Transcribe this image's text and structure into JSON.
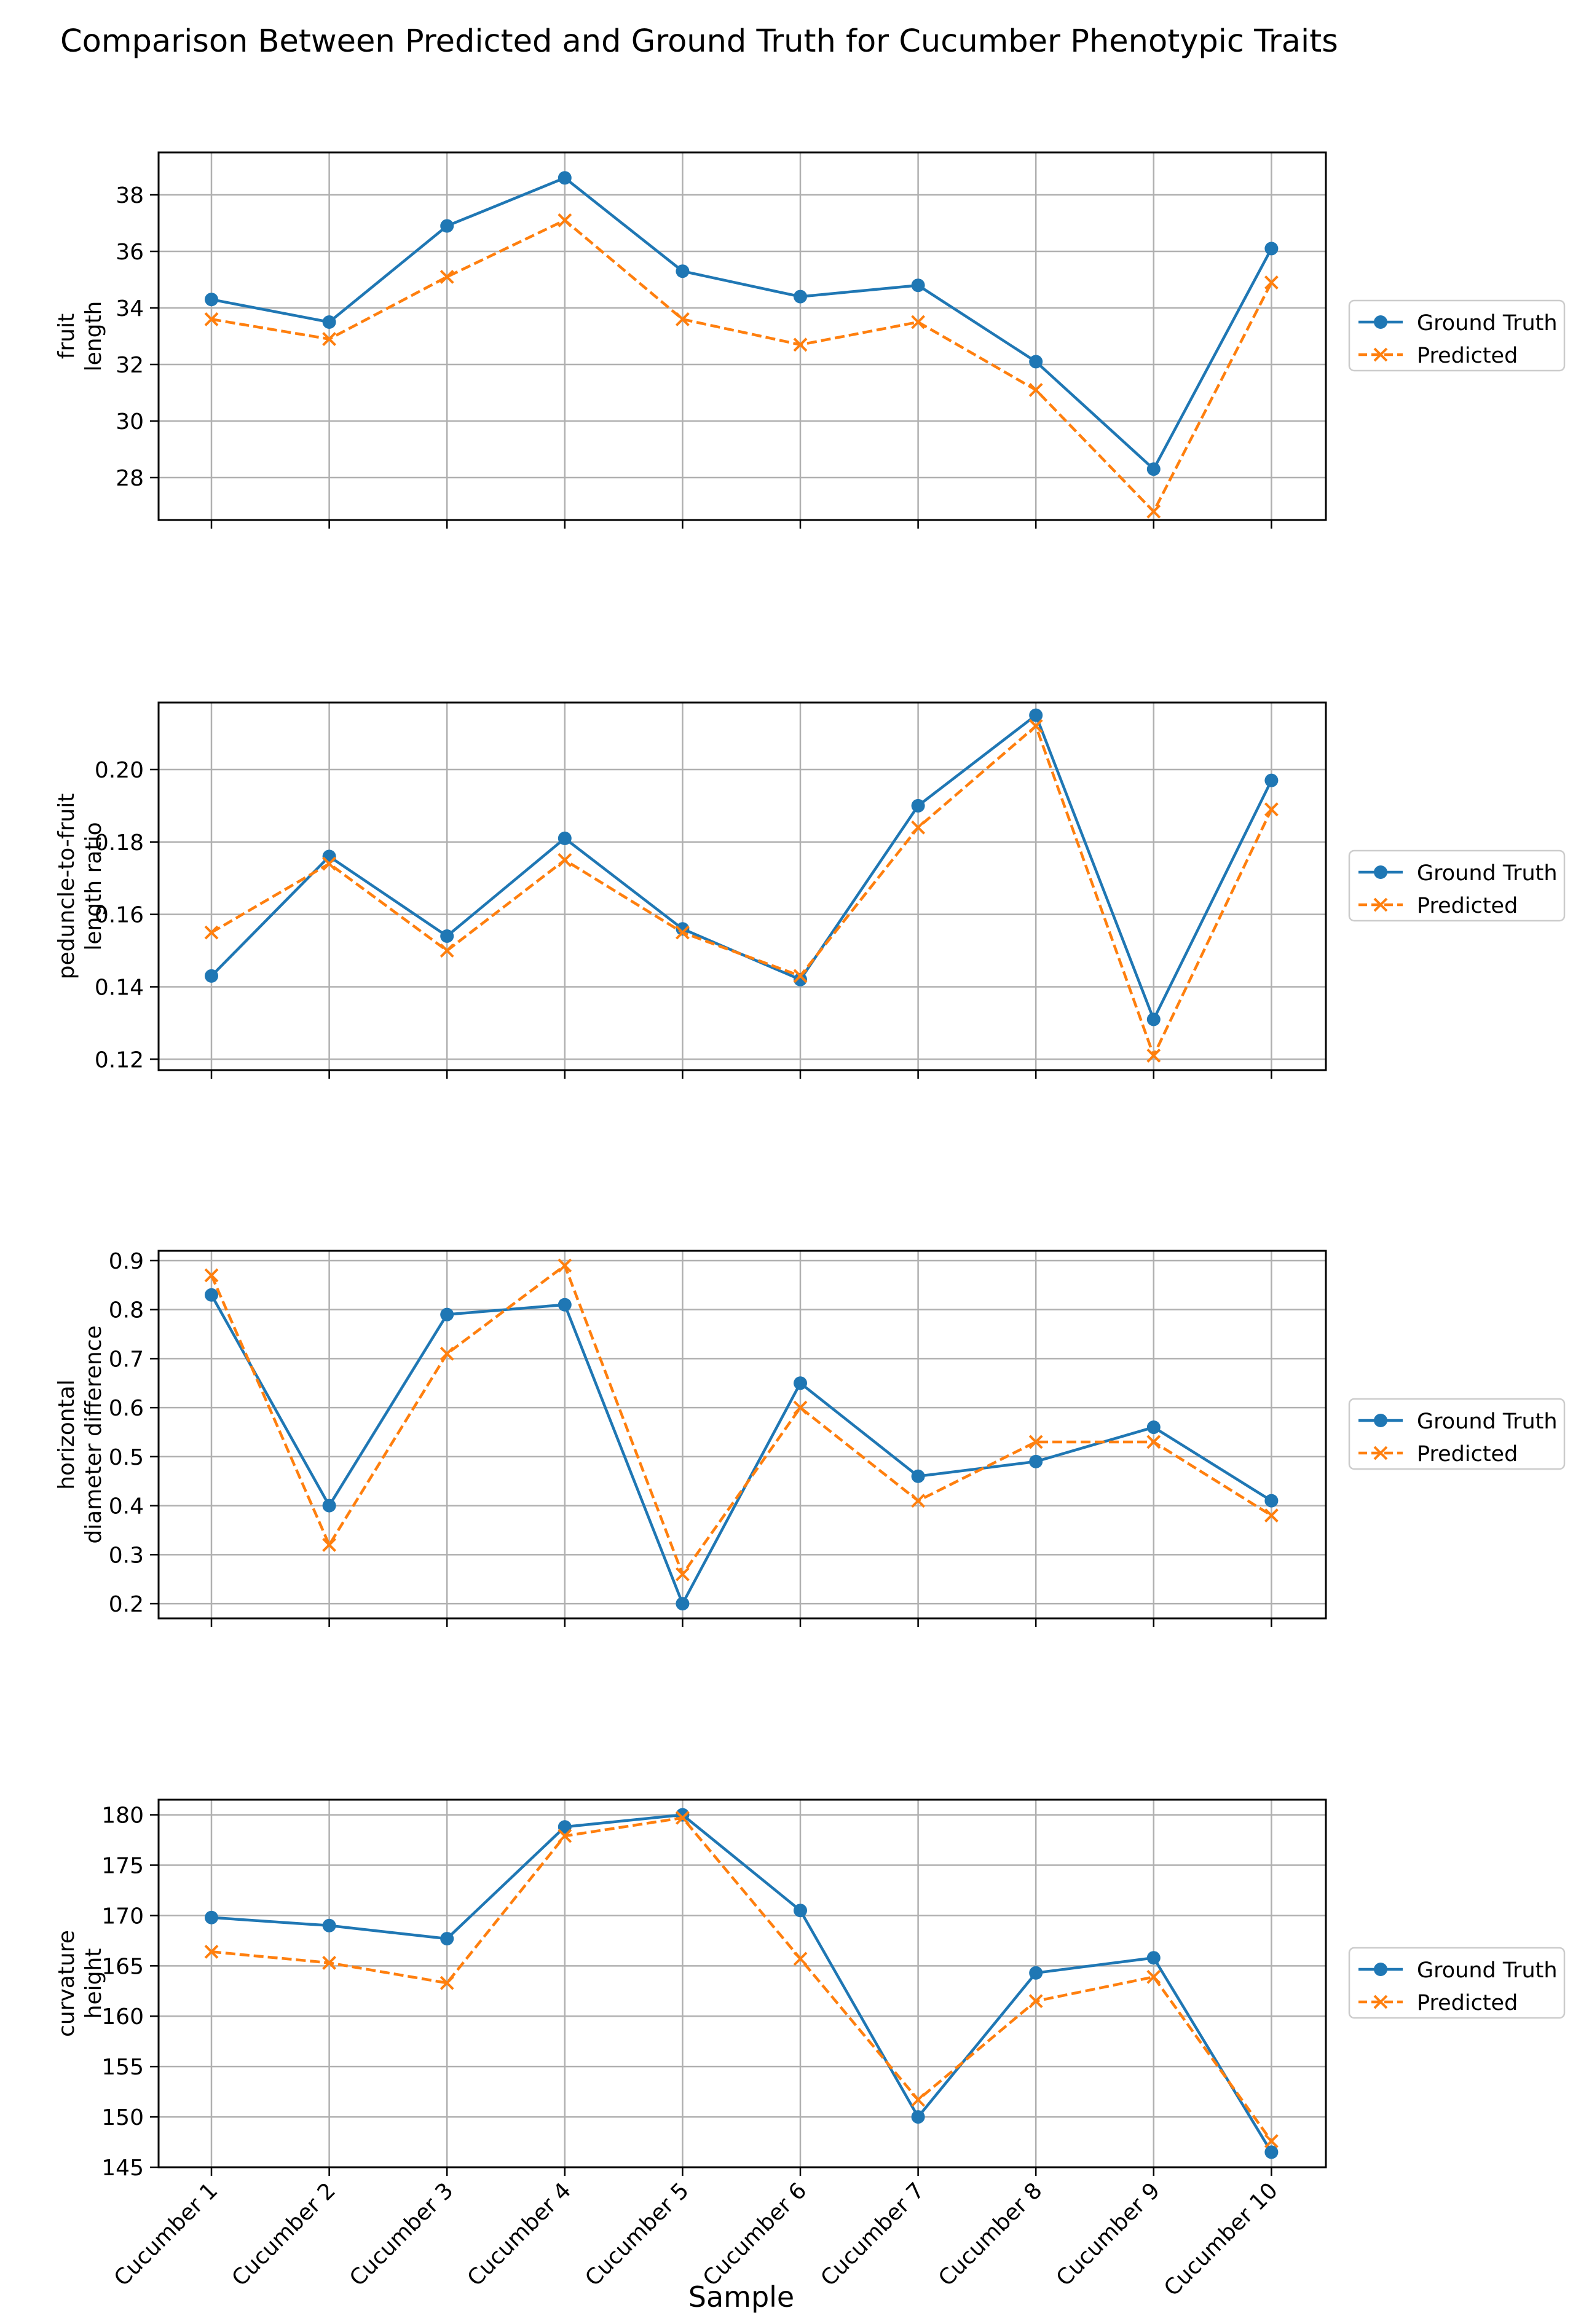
{
  "chart_data": {
    "type": "line",
    "title": "Comparison Between Predicted and Ground Truth for Cucumber Phenotypic Traits",
    "xlabel": "Sample",
    "categories": [
      "Cucumber 1",
      "Cucumber 2",
      "Cucumber 3",
      "Cucumber 4",
      "Cucumber 5",
      "Cucumber 6",
      "Cucumber 7",
      "Cucumber 8",
      "Cucumber 9",
      "Cucumber 10"
    ],
    "legend_position": "right",
    "grid": true,
    "colors": {
      "ground_truth": "#1f77b4",
      "predicted": "#ff7f0e"
    },
    "panels": [
      {
        "ylabel": [
          "fruit",
          "length"
        ],
        "ylim": [
          26.5,
          39.5
        ],
        "yticks": [
          28,
          30,
          32,
          34,
          36,
          38
        ],
        "ytick_labels": [
          "28",
          "30",
          "32",
          "34",
          "36",
          "38"
        ],
        "series": [
          {
            "name": "Ground Truth",
            "values": [
              34.3,
              33.5,
              36.9,
              38.6,
              35.3,
              34.4,
              34.8,
              32.1,
              28.3,
              36.1
            ]
          },
          {
            "name": "Predicted",
            "values": [
              33.6,
              32.9,
              35.1,
              37.1,
              33.6,
              32.7,
              33.5,
              31.1,
              26.8,
              34.9
            ]
          }
        ]
      },
      {
        "ylabel": [
          "peduncle-to-fruit",
          "length ratio"
        ],
        "ylim": [
          0.117,
          0.2185
        ],
        "yticks": [
          0.12,
          0.14,
          0.16,
          0.18,
          0.2
        ],
        "ytick_labels": [
          "0.12",
          "0.14",
          "0.16",
          "0.18",
          "0.20"
        ],
        "series": [
          {
            "name": "Ground Truth",
            "values": [
              0.143,
              0.176,
              0.154,
              0.181,
              0.156,
              0.142,
              0.19,
              0.215,
              0.131,
              0.197
            ]
          },
          {
            "name": "Predicted",
            "values": [
              0.155,
              0.174,
              0.15,
              0.175,
              0.155,
              0.143,
              0.184,
              0.212,
              0.121,
              0.189
            ]
          }
        ]
      },
      {
        "ylabel": [
          "horizontal",
          "diameter difference"
        ],
        "ylim": [
          0.17,
          0.92
        ],
        "yticks": [
          0.2,
          0.3,
          0.4,
          0.5,
          0.6,
          0.7,
          0.8,
          0.9
        ],
        "ytick_labels": [
          "0.2",
          "0.3",
          "0.4",
          "0.5",
          "0.6",
          "0.7",
          "0.8",
          "0.9"
        ],
        "series": [
          {
            "name": "Ground Truth",
            "values": [
              0.83,
              0.4,
              0.79,
              0.81,
              0.2,
              0.65,
              0.46,
              0.49,
              0.56,
              0.41
            ]
          },
          {
            "name": "Predicted",
            "values": [
              0.87,
              0.32,
              0.71,
              0.89,
              0.26,
              0.6,
              0.41,
              0.53,
              0.53,
              0.38
            ]
          }
        ]
      },
      {
        "ylabel": [
          "curvature",
          "height"
        ],
        "ylim": [
          145,
          181.5
        ],
        "yticks": [
          145,
          150,
          155,
          160,
          165,
          170,
          175,
          180
        ],
        "ytick_labels": [
          "145",
          "150",
          "155",
          "160",
          "165",
          "170",
          "175",
          "180"
        ],
        "series": [
          {
            "name": "Ground Truth",
            "values": [
              169.8,
              169.0,
              167.7,
              178.8,
              180.0,
              170.5,
              150.0,
              164.3,
              165.8,
              146.5
            ]
          },
          {
            "name": "Predicted",
            "values": [
              166.4,
              165.3,
              163.3,
              177.9,
              179.7,
              165.7,
              151.7,
              161.5,
              163.9,
              147.6
            ]
          }
        ]
      }
    ]
  }
}
